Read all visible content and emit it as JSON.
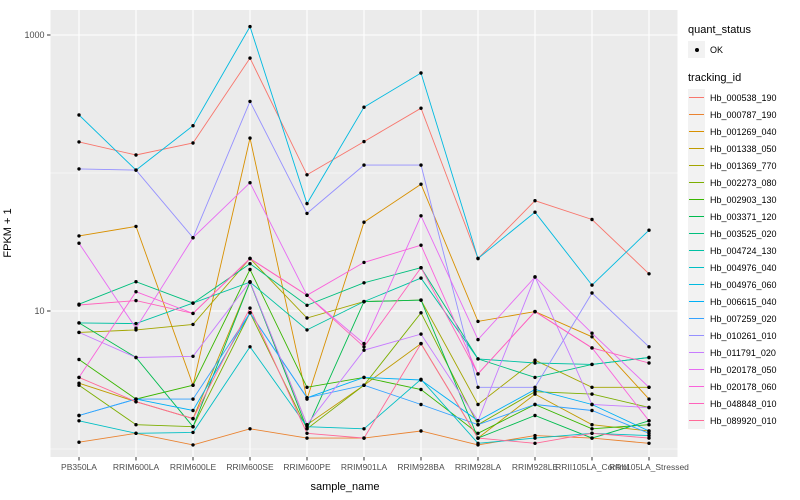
{
  "figure": {
    "background": "#FFFFFF",
    "panel_background": "#EBEBEB",
    "grid_color": "#FFFFFF",
    "tick_color": "#333333",
    "tick_label_color": "#4D4D4D",
    "axis_title_color": "#000000",
    "legend_key_background": "#F2F2F2",
    "point_color": "#000000"
  },
  "legend": {
    "quant_status": {
      "title": "quant_status",
      "entries": [
        {
          "label": "OK",
          "marker": "black-point"
        }
      ]
    },
    "tracking_id": {
      "title": "tracking_id"
    }
  },
  "chart_data": {
    "type": "line",
    "title": "",
    "xlabel": "sample_name",
    "ylabel": "FPKM + 1",
    "y_scale": "log10",
    "grid": true,
    "legend_position": "right",
    "ylim": [
      0.85,
      1600
    ],
    "y_ticks": [
      {
        "label": "1000",
        "value": 1000
      },
      {
        "label": "10",
        "value": 10
      }
    ],
    "y_minor_gridlines": [
      100,
      1
    ],
    "point_marker": "filled-black-dot",
    "categories": [
      "PB350LA",
      "RRIM600LA",
      "RRIM600LE",
      "RRIM600SE",
      "RRIM600PE",
      "RRIM901LA",
      "RRIM928BA",
      "RRIM928LA",
      "RRIM928LE",
      "RRII105LA_Control",
      "RRII105LA_Stressed"
    ],
    "series": [
      {
        "name": "Hb_000538_190",
        "color": "#F8766D",
        "values": [
          168,
          135,
          165,
          680,
          97,
          169,
          295,
          24,
          63,
          46,
          18.6
        ]
      },
      {
        "name": "Hb_000787_190",
        "color": "#EA8331",
        "values": [
          1.12,
          1.3,
          1.07,
          1.4,
          1.2,
          1.2,
          1.35,
          1.07,
          1.25,
          1.2,
          1.1
        ]
      },
      {
        "name": "Hb_001269_040",
        "color": "#D89000",
        "values": [
          35,
          41,
          2.9,
          179,
          2.3,
          44,
          83,
          8.4,
          9.9,
          6.5,
          2.3
        ]
      },
      {
        "name": "Hb_001338_050",
        "color": "#C09B00",
        "values": [
          3.0,
          2.2,
          1.66,
          16.2,
          1.5,
          2.9,
          5.8,
          1.2,
          2.5,
          1.5,
          1.35
        ]
      },
      {
        "name": "Hb_001369_770",
        "color": "#A3A500",
        "values": [
          7.0,
          7.3,
          8.0,
          24,
          8.9,
          11.7,
          12.0,
          2.1,
          4.4,
          2.8,
          2.8
        ]
      },
      {
        "name": "Hb_002273_080",
        "color": "#7CAE00",
        "values": [
          2.9,
          1.5,
          1.45,
          9.7,
          1.4,
          2.9,
          9.7,
          1.5,
          2.6,
          2.5,
          2.0
        ]
      },
      {
        "name": "Hb_002903_130",
        "color": "#39B600",
        "values": [
          4.45,
          2.3,
          2.9,
          20,
          2.8,
          3.3,
          2.7,
          1.3,
          2.1,
          1.4,
          1.5
        ]
      },
      {
        "name": "Hb_003371_120",
        "color": "#00BB4E",
        "values": [
          8.2,
          4.6,
          1.45,
          16.2,
          1.4,
          11.7,
          12.0,
          1.2,
          1.75,
          1.2,
          1.6
        ]
      },
      {
        "name": "Hb_003525_020",
        "color": "#00BF7D",
        "values": [
          11.2,
          16.3,
          11.4,
          22,
          11,
          16,
          20.6,
          4.5,
          3.3,
          4.1,
          4.6
        ]
      },
      {
        "name": "Hb_004724_130",
        "color": "#00C1A3",
        "values": [
          8.2,
          8.1,
          11.4,
          16.2,
          7.3,
          11.7,
          17.3,
          4.5,
          4.2,
          4.1,
          4.6
        ]
      },
      {
        "name": "Hb_004976_040",
        "color": "#00BFC4",
        "values": [
          1.6,
          1.3,
          1.32,
          5.5,
          1.45,
          1.4,
          3.2,
          1.1,
          1.2,
          1.3,
          1.25
        ]
      },
      {
        "name": "Hb_004976_060",
        "color": "#00BAE0",
        "values": [
          263,
          105,
          220,
          1150,
          60,
          300,
          530,
          24,
          52,
          15.4,
          38.5
        ]
      },
      {
        "name": "Hb_006615_040",
        "color": "#00B0F6",
        "values": [
          1.75,
          2.3,
          1.9,
          9.7,
          2.35,
          3.3,
          3.16,
          1.6,
          2.7,
          2.1,
          1.35
        ]
      },
      {
        "name": "Hb_007259_020",
        "color": "#35A2FF",
        "values": [
          1.75,
          2.3,
          2.3,
          9.7,
          2.35,
          2.9,
          2.1,
          1.5,
          2.1,
          1.9,
          1.3
        ]
      },
      {
        "name": "Hb_010261_010",
        "color": "#9590FF",
        "values": [
          107,
          105,
          34,
          330,
          51,
          114,
          114,
          2.8,
          2.8,
          13.5,
          5.5
        ]
      },
      {
        "name": "Hb_011791_020",
        "color": "#C77CFF",
        "values": [
          7.0,
          4.6,
          4.7,
          16.3,
          1.5,
          5.2,
          6.8,
          1.6,
          17.7,
          2.1,
          2.0
        ]
      },
      {
        "name": "Hb_020178_050",
        "color": "#E76BF3",
        "values": [
          31,
          7.5,
          34,
          85,
          13,
          5.8,
          49,
          6.2,
          17.6,
          6.9,
          2.8
        ]
      },
      {
        "name": "Hb_020178_060",
        "color": "#FA62DB",
        "values": [
          3.3,
          13.8,
          9.6,
          24,
          13,
          22.5,
          30,
          3.5,
          9.9,
          5.4,
          1.6
        ]
      },
      {
        "name": "Hb_048848_010",
        "color": "#FF62BC",
        "values": [
          11.05,
          11.9,
          9.6,
          24,
          13,
          5.5,
          20.6,
          3.5,
          9.9,
          5.4,
          4.2
        ]
      },
      {
        "name": "Hb_089920_010",
        "color": "#FF6A98",
        "values": [
          3.3,
          2.2,
          1.66,
          10.5,
          1.3,
          1.2,
          5.8,
          1.2,
          1.1,
          1.3,
          1.2
        ]
      }
    ]
  }
}
